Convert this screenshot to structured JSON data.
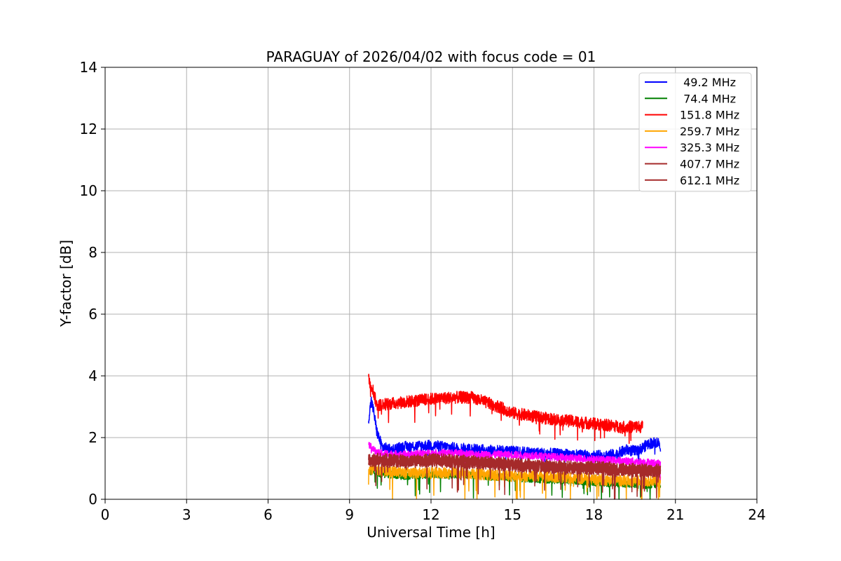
{
  "chart_data": {
    "type": "line",
    "title": "PARAGUAY of 2026/04/02 with focus code = 01",
    "xlabel": "Universal Time [h]",
    "ylabel": "Y-factor [dB]",
    "xlim": [
      0,
      24
    ],
    "ylim": [
      0,
      14
    ],
    "xticks": [
      0,
      3,
      6,
      9,
      12,
      15,
      18,
      21,
      24
    ],
    "yticks": [
      0,
      2,
      4,
      6,
      8,
      10,
      12,
      14
    ],
    "grid": true,
    "legend_position": "top-right",
    "series": [
      {
        "name": " 49.2 MHz",
        "color": "#0000ff",
        "x": [
          9.7,
          9.8,
          9.9,
          10.0,
          10.2,
          10.5,
          11,
          12,
          13,
          14,
          15,
          16,
          17,
          18,
          18.8,
          19.2,
          19.6,
          20.0,
          20.3,
          20.45
        ],
        "y": [
          2.6,
          3.2,
          2.8,
          2.2,
          1.7,
          1.6,
          1.7,
          1.75,
          1.65,
          1.6,
          1.55,
          1.5,
          1.45,
          1.4,
          1.45,
          1.6,
          1.55,
          1.8,
          1.85,
          1.8
        ]
      },
      {
        "name": " 74.4 MHz",
        "color": "#008000",
        "x": [
          9.7,
          10,
          11,
          12,
          13,
          14,
          15,
          16,
          17,
          18,
          19,
          20,
          20.45
        ],
        "y": [
          0.9,
          0.85,
          0.75,
          0.8,
          0.8,
          0.75,
          0.7,
          0.65,
          0.6,
          0.55,
          0.5,
          0.45,
          0.5
        ]
      },
      {
        "name": "151.8 MHz",
        "color": "#ff0000",
        "x": [
          9.7,
          9.85,
          10,
          10.5,
          11,
          12,
          12.8,
          13.5,
          14,
          14.5,
          15,
          16,
          17,
          18,
          19,
          19.8
        ],
        "y": [
          3.9,
          3.6,
          3.05,
          3.1,
          3.15,
          3.25,
          3.3,
          3.3,
          3.15,
          3.0,
          2.8,
          2.65,
          2.55,
          2.45,
          2.35,
          2.35
        ]
      },
      {
        "name": "259.7 MHz",
        "color": "#ffa500",
        "x": [
          9.7,
          10,
          11,
          12,
          13,
          14,
          15,
          16,
          17,
          18,
          19,
          20,
          20.45
        ],
        "y": [
          1.0,
          0.95,
          0.85,
          0.85,
          0.85,
          0.8,
          0.75,
          0.75,
          0.7,
          0.65,
          0.6,
          0.6,
          0.6
        ]
      },
      {
        "name": "325.3 MHz",
        "color": "#ff00ff",
        "x": [
          9.7,
          9.8,
          10,
          11,
          12,
          13,
          14,
          15,
          16,
          17,
          18,
          19,
          20,
          20.45
        ],
        "y": [
          1.8,
          1.7,
          1.5,
          1.45,
          1.5,
          1.5,
          1.45,
          1.45,
          1.4,
          1.35,
          1.3,
          1.25,
          1.2,
          1.15
        ]
      },
      {
        "name": "407.7 MHz",
        "color": "#a52a2a",
        "x": [
          9.7,
          10,
          11,
          12,
          13,
          14,
          15,
          16,
          17,
          18,
          19,
          20,
          20.45
        ],
        "y": [
          1.25,
          1.25,
          1.2,
          1.25,
          1.2,
          1.15,
          1.1,
          1.05,
          1.0,
          1.0,
          0.95,
          0.9,
          0.9
        ]
      },
      {
        "name": "612.1 MHz",
        "color": "#a52a2a",
        "x": [
          9.7,
          10,
          11,
          12,
          13,
          14,
          15,
          16,
          17,
          18,
          19,
          20,
          20.45
        ],
        "y": [
          1.3,
          1.3,
          1.25,
          1.3,
          1.25,
          1.2,
          1.15,
          1.1,
          1.05,
          1.05,
          1.0,
          0.95,
          0.95
        ]
      }
    ]
  }
}
